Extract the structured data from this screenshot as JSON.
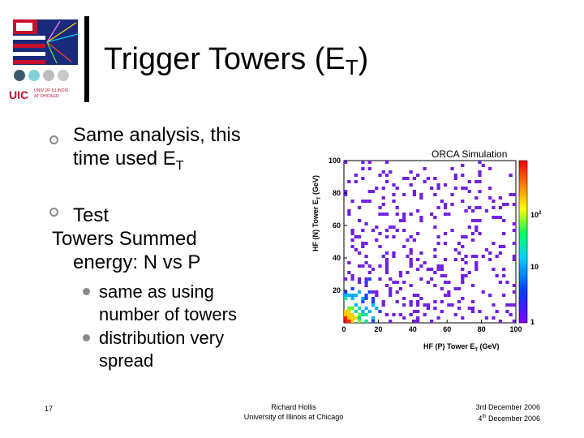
{
  "slide": {
    "title_main": "Trigger Towers (E",
    "title_sub": "T",
    "title_close": ")",
    "bullets": [
      {
        "line1": "Same analysis, this",
        "line2_main": "time used E",
        "line2_sub": "T"
      },
      {
        "line1": "Test",
        "line2": "Towers Summed",
        "line3": "energy: N vs P"
      }
    ],
    "sub_bullets": [
      {
        "line1": "same as using",
        "line2": "number of towers"
      },
      {
        "line1": "distribution very",
        "line2": "spread"
      }
    ],
    "footer": {
      "page_number": "17",
      "author": "Richard Hollis",
      "affiliation": "University of Illinois at Chicago",
      "date1": "3rd December 2006",
      "date2_day": "4",
      "date2_sup": "th",
      "date2_rest": " December 2006"
    },
    "logo": {
      "line1": "UNIV OF ILLINOIS",
      "line2": "AT CHICAGO",
      "uic": "UIC"
    },
    "colors": {
      "accent_red": "#c8102e",
      "bullet_gray": "#8a8a8a"
    }
  },
  "chart_data": {
    "type": "heatmap",
    "title": "ORCA Simulation",
    "xlabel_main": "HF (P) Tower E",
    "xlabel_sub": "T",
    "xlabel_unit": " (GeV)",
    "ylabel_main": "HF (N) Tower E",
    "ylabel_sub": "T",
    "ylabel_unit": " (GeV)",
    "xlim": [
      0,
      100
    ],
    "ylim": [
      0,
      100
    ],
    "x_ticks": [
      "0",
      "20",
      "40",
      "60",
      "80",
      "100"
    ],
    "y_ticks": [
      "20",
      "40",
      "60",
      "80",
      "100"
    ],
    "zscale": "log",
    "z_ticks": [
      "1",
      "10",
      "10"
    ],
    "z_tick_sup": "2",
    "bins": 50,
    "description_of_density": "highest density near (0,0), decreasing outward"
  }
}
